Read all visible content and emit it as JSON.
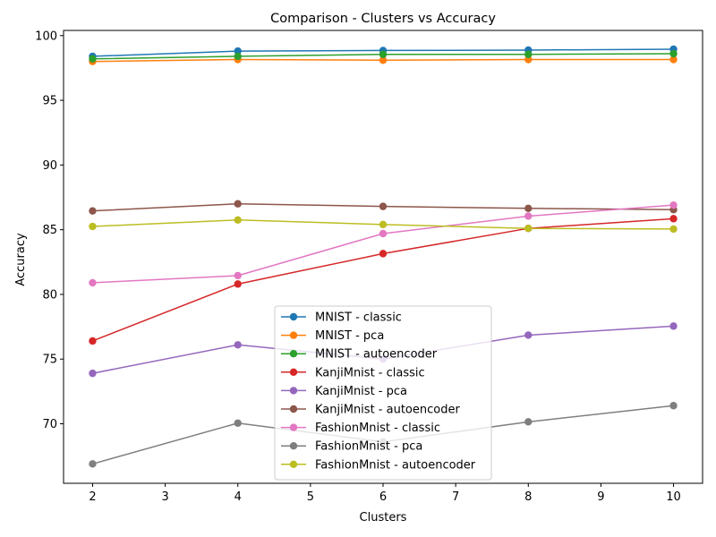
{
  "chart_data": {
    "type": "line",
    "title": "Comparison - Clusters vs Accuracy",
    "xlabel": "Clusters",
    "ylabel": "Accuracy",
    "x": [
      2,
      4,
      6,
      8,
      10
    ],
    "xlim": [
      1.6,
      10.4
    ],
    "ylim": [
      65.4,
      100.4
    ],
    "xticks": [
      2,
      3,
      4,
      5,
      6,
      7,
      8,
      9,
      10
    ],
    "yticks": [
      70,
      75,
      80,
      85,
      90,
      95,
      100
    ],
    "grid": false,
    "legend_position": "lower-center",
    "series": [
      {
        "name": "MNIST - classic",
        "color": "#1f77b4",
        "values": [
          98.4,
          98.8,
          98.85,
          98.88,
          98.95
        ]
      },
      {
        "name": "MNIST - pca",
        "color": "#ff7f0e",
        "values": [
          98.0,
          98.15,
          98.1,
          98.15,
          98.15
        ]
      },
      {
        "name": "MNIST - autoencoder",
        "color": "#2ca02c",
        "values": [
          98.2,
          98.4,
          98.55,
          98.55,
          98.6
        ]
      },
      {
        "name": "KanjiMnist - classic",
        "color": "#d62728",
        "values": [
          76.4,
          80.8,
          83.15,
          85.1,
          85.85
        ]
      },
      {
        "name": "KanjiMnist - pca",
        "color": "#9467bd",
        "values": [
          73.9,
          76.1,
          75.0,
          76.85,
          77.55
        ]
      },
      {
        "name": "KanjiMnist - autoencoder",
        "color": "#8c564b",
        "values": [
          86.45,
          87.0,
          86.8,
          86.65,
          86.55
        ]
      },
      {
        "name": "FashionMnist - classic",
        "color": "#e377c2",
        "values": [
          80.9,
          81.45,
          84.7,
          86.05,
          86.9
        ]
      },
      {
        "name": "FashionMnist - pca",
        "color": "#7f7f7f",
        "values": [
          66.9,
          70.05,
          68.6,
          70.15,
          71.4
        ]
      },
      {
        "name": "FashionMnist - autoencoder",
        "color": "#bcbd22",
        "values": [
          85.25,
          85.75,
          85.4,
          85.1,
          85.05
        ]
      }
    ]
  }
}
